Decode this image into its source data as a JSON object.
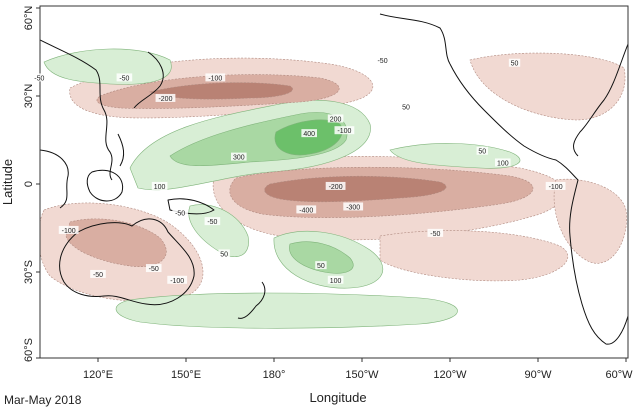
{
  "figure": {
    "caption": "Mar-May 2018",
    "xlabel": "Longitude",
    "ylabel": "Latitude",
    "x_ticks": [
      "120°E",
      "150°E",
      "180°",
      "150°W",
      "120°W",
      "90°W",
      "60°W"
    ],
    "y_ticks": [
      "60°N",
      "30°N",
      "0",
      "30°S",
      "60°S"
    ]
  },
  "colors": {
    "positive_light": "#d8eed5",
    "positive_mid": "#a9d8a3",
    "positive_strong": "#6cc06a",
    "negative_light": "#f1d9d2",
    "negative_mid": "#d9aea2",
    "negative_strong": "#b98274",
    "coastline": "#111111"
  },
  "contour_labels": [
    {
      "text": "-50",
      "lon": 100,
      "lat": 36
    },
    {
      "text": "-50",
      "lon": 129,
      "lat": 36
    },
    {
      "text": "-100",
      "lon": 160,
      "lat": 36
    },
    {
      "text": "-200",
      "lon": 143,
      "lat": 29
    },
    {
      "text": "-50",
      "lon": 217,
      "lat": 42
    },
    {
      "text": "50",
      "lon": 262,
      "lat": 41
    },
    {
      "text": "50",
      "lon": 225,
      "lat": 26
    },
    {
      "text": "-100",
      "lon": 204,
      "lat": 18
    },
    {
      "text": "300",
      "lon": 168,
      "lat": 9
    },
    {
      "text": "400",
      "lon": 192,
      "lat": 17
    },
    {
      "text": "200",
      "lon": 201,
      "lat": 22
    },
    {
      "text": "50",
      "lon": 251,
      "lat": 11
    },
    {
      "text": "100",
      "lon": 258,
      "lat": 7
    },
    {
      "text": "100",
      "lon": 141,
      "lat": -1
    },
    {
      "text": "-200",
      "lon": 201,
      "lat": -1
    },
    {
      "text": "-400",
      "lon": 191,
      "lat": -9
    },
    {
      "text": "-300",
      "lon": 207,
      "lat": -8
    },
    {
      "text": "-100",
      "lon": 276,
      "lat": -1
    },
    {
      "text": "-100",
      "lon": 110,
      "lat": -16
    },
    {
      "text": "-50",
      "lon": 148,
      "lat": -10
    },
    {
      "text": "-50",
      "lon": 159,
      "lat": -13
    },
    {
      "text": "50",
      "lon": 163,
      "lat": -24
    },
    {
      "text": "-50",
      "lon": 235,
      "lat": -17
    },
    {
      "text": "-50",
      "lon": 120,
      "lat": -31
    },
    {
      "text": "-50",
      "lon": 139,
      "lat": -29
    },
    {
      "text": "-100",
      "lon": 147,
      "lat": -33
    },
    {
      "text": "50",
      "lon": 196,
      "lat": -28
    },
    {
      "text": "100",
      "lon": 201,
      "lat": -33
    }
  ]
}
